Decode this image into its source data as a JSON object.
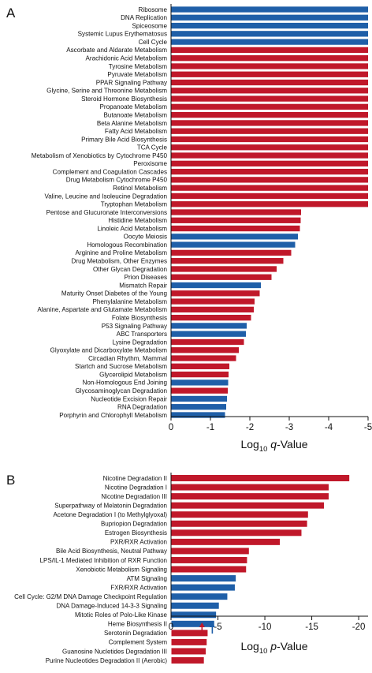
{
  "chart_data": [
    {
      "panel_label": "A",
      "type": "bar",
      "orientation": "horizontal",
      "xlabel_main": "Log",
      "xlabel_sub": "10",
      "xlabel_var": "q",
      "xlabel_tail": "-Value",
      "xlim": [
        0,
        -5
      ],
      "xticks": [
        0,
        -1,
        -2,
        -3,
        -4,
        -5
      ],
      "xtick_labels": [
        "0",
        "-1",
        "-2",
        "-3",
        "-4",
        "-5"
      ],
      "colors": {
        "blue": "#1f5fa8",
        "red": "#c0182a"
      },
      "categories": [
        "Ribosome",
        "DNA Replication",
        "Spiceosome",
        "Systemic Lupus Erythematosus",
        "Cell Cycle",
        "Ascorbate and Aldarate Metabolism",
        "Arachidonic Acid Metabolism",
        "Tyrosine Metabolism",
        "Pyruvate Metabolism",
        "PPAR Signaling Pathway",
        "Glycine, Serine and Threonine Metabolism",
        "Steroid Hormone Biosynthesis",
        "Propanoate Metabolism",
        "Butanoate Metabolism",
        "Beta Alanine Metabolism",
        "Fatty Acid Metabolism",
        "Primary Bile Acid Biosynthesis",
        "TCA Cycle",
        "Metabolism of Xenobiotics by Cytochrome P450",
        "Peroxisome",
        "Complement and Coagulation Cascades",
        "Drug Metabolism Cytochrome P450",
        "Retinol Metabolism",
        "Valine, Leucine and Isoleucine Degradation",
        "Tryptophan Metabolism",
        "Pentose and Glucuronate Interconversions",
        "Histidine Metabolism",
        "Linoleic Acid Metabolism",
        "Oocyte Meiosis",
        "Homologous Recombination",
        "Arginine and Proline Metabolism",
        "Drug Metabolism, Other Enzymes",
        "Other Glycan Degradation",
        "Prion Diseases",
        "Mismatch Repair",
        "Maturity Onset Diabetes of the Young",
        "Phenylalanine Metabolism",
        "Alanine, Aspartate and Glutamate Metabolism",
        "Folate Biosynthesis",
        "P53 Signaling Pathway",
        "ABC Transporters",
        "Lysine Degradation",
        "Glyoxylate and Dicarboxylate Metabolism",
        "Circadian Rhythm, Mammal",
        "Startch and Sucrose Metabolism",
        "Glycerolipid Metabolism",
        "Non-Homologous End Joining",
        "Glycosaminoglycan Degradation",
        "Nucleotide Excision Repair",
        "RNA Degradation",
        "Porphyrin and Chlorophyll Metabolism"
      ],
      "values": [
        -5.0,
        -5.0,
        -5.0,
        -5.0,
        -5.0,
        -5.0,
        -5.0,
        -5.0,
        -5.0,
        -5.0,
        -5.0,
        -5.0,
        -5.0,
        -5.0,
        -5.0,
        -5.0,
        -5.0,
        -5.0,
        -5.0,
        -5.0,
        -5.0,
        -5.0,
        -5.0,
        -5.0,
        -5.0,
        -3.3,
        -3.29,
        -3.27,
        -3.22,
        -3.15,
        -3.05,
        -2.85,
        -2.68,
        -2.55,
        -2.28,
        -2.25,
        -2.12,
        -2.1,
        -2.03,
        -1.92,
        -1.9,
        -1.85,
        -1.72,
        -1.65,
        -1.48,
        -1.46,
        -1.45,
        -1.44,
        -1.42,
        -1.4,
        -1.37
      ],
      "bar_colors": [
        "blue",
        "blue",
        "blue",
        "blue",
        "blue",
        "red",
        "red",
        "red",
        "red",
        "red",
        "red",
        "red",
        "red",
        "red",
        "red",
        "red",
        "red",
        "red",
        "red",
        "red",
        "red",
        "red",
        "red",
        "red",
        "red",
        "red",
        "red",
        "red",
        "blue",
        "blue",
        "red",
        "red",
        "red",
        "red",
        "blue",
        "red",
        "red",
        "red",
        "red",
        "blue",
        "blue",
        "red",
        "red",
        "red",
        "red",
        "red",
        "blue",
        "red",
        "blue",
        "blue",
        "blue"
      ]
    },
    {
      "panel_label": "B",
      "type": "bar",
      "orientation": "horizontal",
      "xlabel_main": "Log",
      "xlabel_sub": "10",
      "xlabel_var": "p",
      "xlabel_tail": "-Value",
      "xlim": [
        0,
        -21
      ],
      "xticks": [
        0,
        -5,
        -10,
        -15,
        -20
      ],
      "xtick_labels": [
        "0",
        "-5",
        "-10",
        "-15",
        "-20"
      ],
      "colors": {
        "blue": "#1f5fa8",
        "red": "#c0182a"
      },
      "arrows": [
        {
          "x": -3.3,
          "color": "red"
        },
        {
          "x": -4.4,
          "color": "blue"
        }
      ],
      "categories": [
        "Nicotine Degradation II",
        "Nicotine Degradation I",
        "Nicotine Degradation III",
        "Superpathway of Melatonin Degradation",
        "Acetone Degradation I (to Methylglyoxal)",
        "Bupriopion Degradation",
        "Estrogen Biosynthesis",
        "PXR/RXR Activation",
        "Bile Acid Biosynthesis, Neutral Pathway",
        "LPS/IL-1 Mediated Inhibition of RXR Function",
        "Xenobiotic Metabolism Signaling",
        "ATM Signaling",
        "FXR/RXR Activation",
        "Cell Cycle: G2/M DNA Damage Checkpoint Regulation",
        "DNA Damage-Induced 14-3-3 Signaling",
        "Mitotic Roles of Polo-Like Kinase",
        "Heme Biosynthesis II",
        "Serotonin Degradation",
        "Complement System",
        "Guanosine Nucletides Degradation III",
        "Purine Nucleotides Degradation II (Aerobic)"
      ],
      "values": [
        -19.0,
        -16.8,
        -16.8,
        -16.3,
        -14.6,
        -14.5,
        -13.9,
        -11.6,
        -8.3,
        -8.1,
        -8.0,
        -6.9,
        -6.8,
        -6.0,
        -5.1,
        -4.8,
        -4.6,
        -3.9,
        -3.8,
        -3.7,
        -3.5
      ],
      "bar_colors": [
        "red",
        "red",
        "red",
        "red",
        "red",
        "red",
        "red",
        "red",
        "red",
        "red",
        "red",
        "blue",
        "blue",
        "blue",
        "blue",
        "blue",
        "blue",
        "red",
        "red",
        "red",
        "red"
      ]
    }
  ]
}
